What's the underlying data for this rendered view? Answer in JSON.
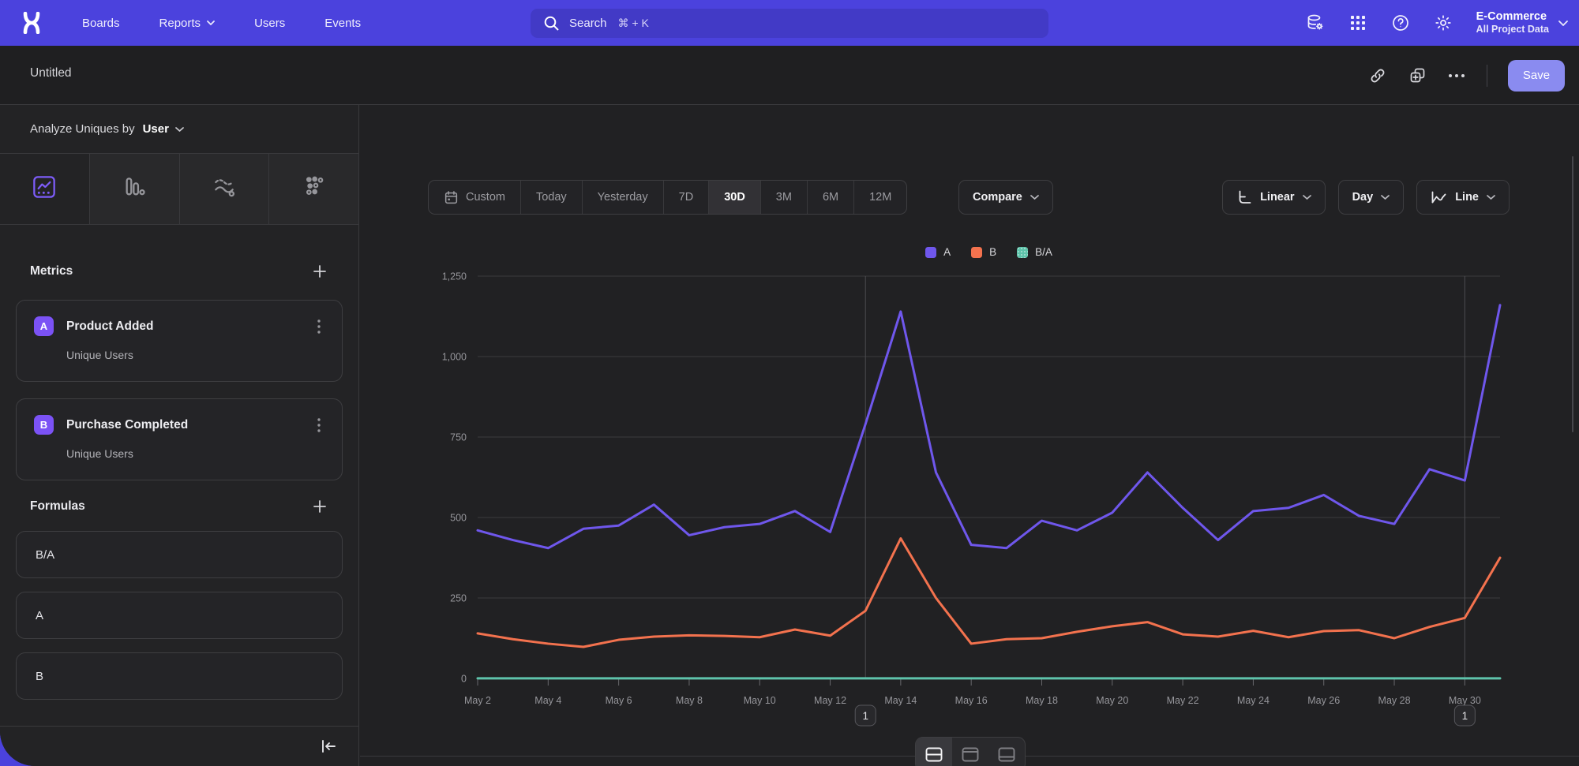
{
  "nav": {
    "items": [
      "Boards",
      "Reports",
      "Users",
      "Events"
    ],
    "search": {
      "placeholder": "Search",
      "shortcut": "⌘ + K"
    },
    "project": {
      "name": "E-Commerce",
      "scope": "All Project Data"
    }
  },
  "report_header": {
    "title": "Untitled",
    "save_label": "Save"
  },
  "sidebar": {
    "analyze_prefix": "Analyze Uniques by",
    "analyze_value": "User",
    "metrics": {
      "title": "Metrics",
      "items": [
        {
          "badge": "A",
          "name": "Product Added",
          "subtitle": "Unique Users"
        },
        {
          "badge": "B",
          "name": "Purchase Completed",
          "subtitle": "Unique Users"
        }
      ]
    },
    "formulas": {
      "title": "Formulas",
      "items": [
        "B/A",
        "A",
        "B"
      ]
    }
  },
  "toolbar": {
    "date_ranges": [
      "Custom",
      "Today",
      "Yesterday",
      "7D",
      "30D",
      "3M",
      "6M",
      "12M"
    ],
    "active_range": "30D",
    "compare_label": "Compare",
    "scale_label": "Linear",
    "interval_label": "Day",
    "chart_type_label": "Line"
  },
  "chart_data": {
    "type": "line",
    "x": [
      "May 2",
      "May 3",
      "May 4",
      "May 5",
      "May 6",
      "May 7",
      "May 8",
      "May 9",
      "May 10",
      "May 11",
      "May 12",
      "May 13",
      "May 14",
      "May 15",
      "May 16",
      "May 17",
      "May 18",
      "May 19",
      "May 20",
      "May 21",
      "May 22",
      "May 23",
      "May 24",
      "May 25",
      "May 26",
      "May 27",
      "May 28",
      "May 29",
      "May 30",
      "May 31"
    ],
    "series": [
      {
        "name": "A",
        "color": "#6f57ec",
        "values": [
          460,
          430,
          405,
          465,
          475,
          540,
          445,
          470,
          480,
          520,
          455,
          790,
          1140,
          640,
          415,
          405,
          490,
          460,
          515,
          640,
          530,
          430,
          520,
          530,
          570,
          505,
          480,
          650,
          615,
          1160
        ]
      },
      {
        "name": "B",
        "color": "#f3724e",
        "values": [
          140,
          122,
          108,
          98,
          120,
          130,
          134,
          132,
          128,
          152,
          133,
          210,
          435,
          250,
          108,
          122,
          125,
          145,
          162,
          175,
          137,
          130,
          148,
          128,
          147,
          150,
          125,
          160,
          188,
          375
        ]
      },
      {
        "name": "B/A",
        "color": "#5ec3aa",
        "dotted": true,
        "values": [
          0.3,
          0.28,
          0.27,
          0.21,
          0.25,
          0.24,
          0.3,
          0.28,
          0.27,
          0.29,
          0.29,
          0.27,
          0.38,
          0.39,
          0.26,
          0.3,
          0.26,
          0.32,
          0.31,
          0.27,
          0.26,
          0.3,
          0.28,
          0.24,
          0.26,
          0.3,
          0.26,
          0.25,
          0.31,
          0.32
        ]
      }
    ],
    "ylim": [
      0,
      1250
    ],
    "yticks": [
      0,
      250,
      500,
      750,
      1000,
      1250
    ],
    "x_label_step": 2,
    "grid": true,
    "legend_position": "top",
    "annotations": [
      {
        "x": "May 13",
        "label": "1"
      },
      {
        "x": "May 30",
        "label": "1"
      }
    ]
  }
}
